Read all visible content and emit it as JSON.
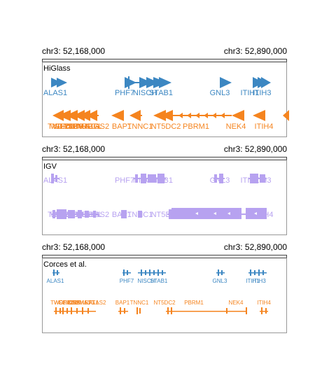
{
  "region": {
    "start_label": "chr3: 52,168,000",
    "end_label": "chr3: 52,890,000"
  },
  "colors": {
    "plus": "#3c87c2",
    "minus": "#f5841f",
    "igv": "#b7a2f0",
    "axis": "#444444"
  },
  "panels": [
    {
      "title": "HiGlass",
      "style": "higlass"
    },
    {
      "title": "IGV",
      "style": "igv"
    },
    {
      "title": "Corces et al.",
      "style": "corces"
    }
  ],
  "plus_genes": [
    "ALAS1",
    "PHF7",
    "NISCH",
    "STAB1",
    "GNL3",
    "ITIH1",
    "ITIH3"
  ],
  "minus_genes": [
    "TWF2",
    "WDR82",
    "GLYCTK",
    "TLR9",
    "DNAH1",
    "SEMA3G",
    "ALAS2",
    "RFT1",
    "BAP1",
    "TNNC1",
    "NT5DC2",
    "PBRM1",
    "NEK4",
    "ITIH4"
  ]
}
